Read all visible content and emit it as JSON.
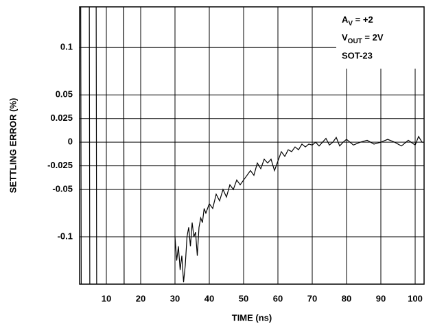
{
  "chart_data": {
    "type": "line",
    "xlabel": "TIME (ns)",
    "ylabel": "SETTLING ERROR (%)",
    "xlim": [
      2.2,
      102.6
    ],
    "xticks": [
      10,
      20,
      30,
      40,
      50,
      60,
      70,
      80,
      90,
      100
    ],
    "ylim": [
      -0.15,
      0.143
    ],
    "yticks": [
      0.1,
      0.05,
      0.025,
      0,
      -0.025,
      -0.05,
      -0.1
    ],
    "grid": true,
    "color": "#000000",
    "annotations": [
      {
        "text": "A",
        "sub": "V",
        "after": " = +2"
      },
      {
        "text": "V",
        "sub": "OUT",
        "after": " = 2V"
      },
      {
        "text": "SOT-23"
      }
    ],
    "x": [
      2.5,
      2.7,
      3,
      5,
      5.2,
      6,
      7,
      7.2,
      10,
      15,
      15.2,
      20,
      30,
      30.5,
      31,
      31.5,
      32,
      32.5,
      33,
      33.5,
      34,
      34.5,
      35,
      35.5,
      36,
      36.5,
      37,
      37.5,
      38,
      38.5,
      39,
      40,
      41,
      42,
      43,
      44,
      45,
      46,
      47,
      48,
      49,
      50,
      51,
      52,
      53,
      54,
      55,
      56,
      57,
      58,
      59,
      60,
      61,
      62,
      63,
      64,
      65,
      66,
      67,
      68,
      69,
      70,
      71,
      72,
      73,
      74,
      75,
      76,
      77,
      78,
      79,
      80,
      82,
      84,
      86,
      88,
      90,
      92,
      94,
      96,
      98,
      100,
      101,
      102,
      103
    ],
    "values": [
      0.2,
      -0.2,
      null,
      0.2,
      -0.2,
      null,
      0.2,
      -0.2,
      null,
      0.2,
      -0.2,
      null,
      -0.1,
      -0.125,
      -0.11,
      -0.135,
      -0.12,
      -0.148,
      -0.13,
      -0.1,
      -0.09,
      -0.11,
      -0.085,
      -0.1,
      -0.095,
      -0.12,
      -0.09,
      -0.08,
      -0.085,
      -0.07,
      -0.075,
      -0.065,
      -0.07,
      -0.055,
      -0.062,
      -0.05,
      -0.058,
      -0.045,
      -0.05,
      -0.04,
      -0.045,
      -0.04,
      -0.035,
      -0.03,
      -0.035,
      -0.022,
      -0.028,
      -0.018,
      -0.022,
      -0.018,
      -0.03,
      -0.02,
      -0.01,
      -0.015,
      -0.008,
      -0.01,
      -0.005,
      -0.008,
      -0.002,
      -0.005,
      -0.002,
      -0.003,
      0,
      -0.004,
      0,
      0.004,
      -0.003,
      0,
      0.005,
      -0.004,
      0,
      0.003,
      -0.003,
      0,
      0.002,
      -0.002,
      0,
      0.003,
      0,
      -0.004,
      0.002,
      -0.003,
      0.006,
      0,
      0
    ]
  }
}
